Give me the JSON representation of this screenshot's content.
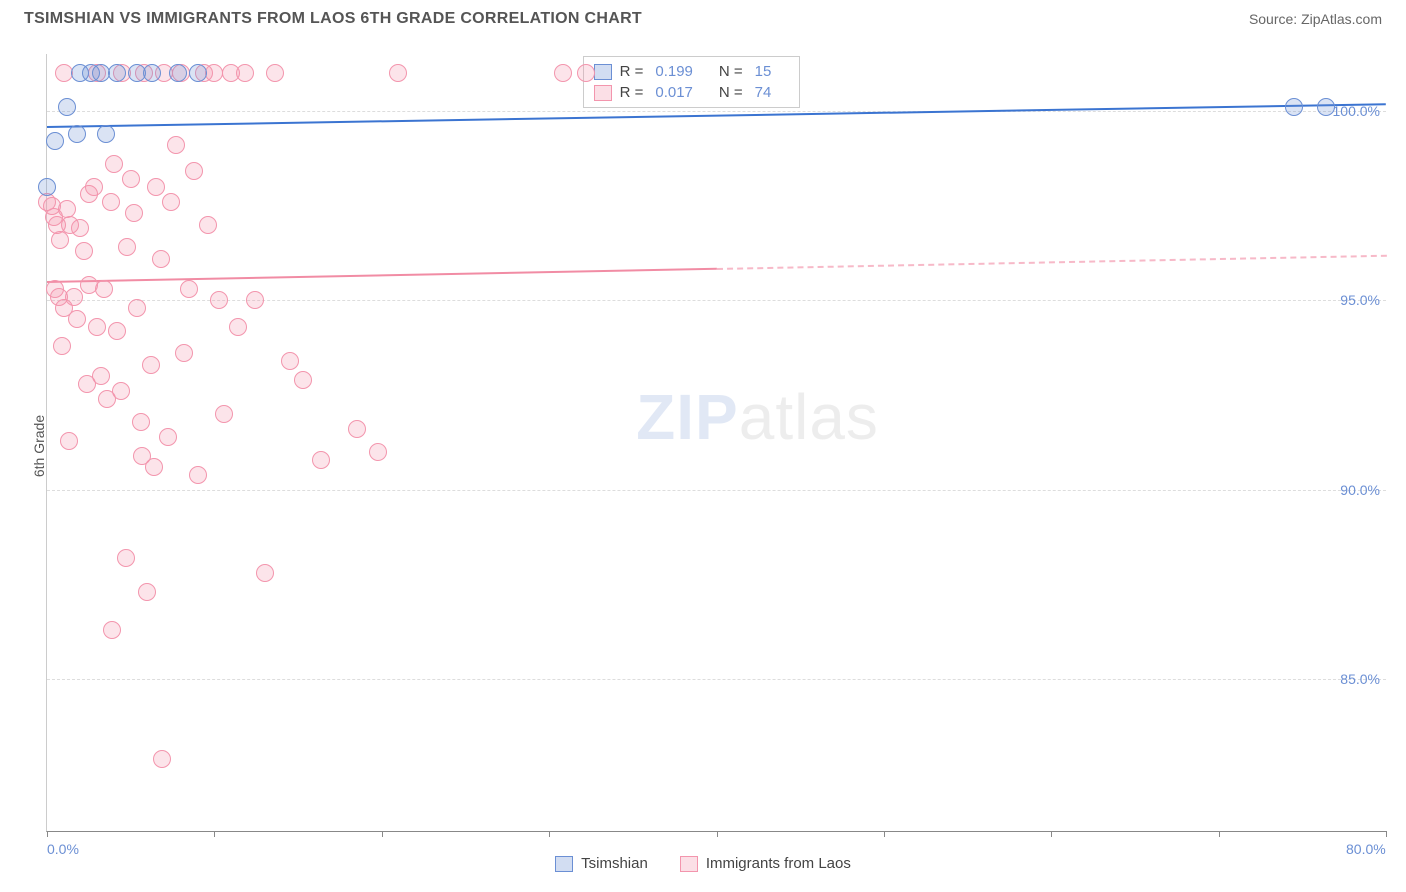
{
  "header": {
    "title": "TSIMSHIAN VS IMMIGRANTS FROM LAOS 6TH GRADE CORRELATION CHART",
    "source": "Source: ZipAtlas.com"
  },
  "chart": {
    "type": "scatter",
    "y_axis_label": "6th Grade",
    "xlim": [
      0,
      80
    ],
    "ylim": [
      81,
      101.5
    ],
    "x_ticks": [
      0,
      10,
      20,
      30,
      40,
      50,
      60,
      70,
      80
    ],
    "x_tick_labels": {
      "0": "0.0%",
      "80": "80.0%"
    },
    "y_ticks": [
      85,
      90,
      95,
      100
    ],
    "y_tick_labels": {
      "85": "85.0%",
      "90": "90.0%",
      "95": "95.0%",
      "100": "100.0%"
    },
    "grid_color": "#dddddd",
    "background_color": "#ffffff",
    "series": [
      {
        "name": "Tsimshian",
        "color_fill": "rgba(107,143,212,0.25)",
        "color_stroke": "#6b8fd4",
        "marker_radius": 9,
        "r_value": "0.199",
        "n_value": "15",
        "trend": {
          "y_start": 99.6,
          "y_end": 100.2,
          "solid_from_x": 0,
          "solid_to_x": 80
        },
        "points": [
          [
            0,
            98.0
          ],
          [
            0.5,
            99.2
          ],
          [
            1.2,
            100.1
          ],
          [
            1.8,
            99.4
          ],
          [
            2.0,
            101.0
          ],
          [
            2.6,
            101.0
          ],
          [
            3.2,
            101.0
          ],
          [
            3.5,
            99.4
          ],
          [
            4.2,
            101.0
          ],
          [
            5.4,
            101.0
          ],
          [
            6.3,
            101.0
          ],
          [
            7.8,
            101.0
          ],
          [
            9.0,
            101.0
          ],
          [
            74.5,
            100.1
          ],
          [
            76.4,
            100.1
          ]
        ]
      },
      {
        "name": "Immigrants from Laos",
        "color_fill": "rgba(243,149,173,0.25)",
        "color_stroke": "#f395ad",
        "marker_radius": 9,
        "r_value": "0.017",
        "n_value": "74",
        "trend": {
          "y_start": 95.5,
          "y_end": 96.2,
          "solid_from_x": 0,
          "solid_to_x": 40
        },
        "points": [
          [
            0,
            97.6
          ],
          [
            0.3,
            97.5
          ],
          [
            0.4,
            97.2
          ],
          [
            0.6,
            97.0
          ],
          [
            0.8,
            96.6
          ],
          [
            0.5,
            95.3
          ],
          [
            0.7,
            95.1
          ],
          [
            1.0,
            94.8
          ],
          [
            1.2,
            97.4
          ],
          [
            1.4,
            97.0
          ],
          [
            1.0,
            101.0
          ],
          [
            1.6,
            95.1
          ],
          [
            1.8,
            94.5
          ],
          [
            2.0,
            96.9
          ],
          [
            2.2,
            96.3
          ],
          [
            2.5,
            97.8
          ],
          [
            2.5,
            95.4
          ],
          [
            2.8,
            98.0
          ],
          [
            3.0,
            94.3
          ],
          [
            3.0,
            101.0
          ],
          [
            3.2,
            93.0
          ],
          [
            3.4,
            95.3
          ],
          [
            3.6,
            92.4
          ],
          [
            3.8,
            97.6
          ],
          [
            4.0,
            98.6
          ],
          [
            4.2,
            94.2
          ],
          [
            4.4,
            92.6
          ],
          [
            4.5,
            101.0
          ],
          [
            4.7,
            88.2
          ],
          [
            4.8,
            96.4
          ],
          [
            5.0,
            98.2
          ],
          [
            5.2,
            97.3
          ],
          [
            5.4,
            94.8
          ],
          [
            5.6,
            91.8
          ],
          [
            5.7,
            90.9
          ],
          [
            5.8,
            101.0
          ],
          [
            6.2,
            93.3
          ],
          [
            6.0,
            87.3
          ],
          [
            6.4,
            90.6
          ],
          [
            6.5,
            98.0
          ],
          [
            6.8,
            96.1
          ],
          [
            7.0,
            101.0
          ],
          [
            7.2,
            91.4
          ],
          [
            7.4,
            97.6
          ],
          [
            7.7,
            99.1
          ],
          [
            8.0,
            101.0
          ],
          [
            8.2,
            93.6
          ],
          [
            8.5,
            95.3
          ],
          [
            8.8,
            98.4
          ],
          [
            9.0,
            90.4
          ],
          [
            9.4,
            101.0
          ],
          [
            9.6,
            97.0
          ],
          [
            10.0,
            101.0
          ],
          [
            10.3,
            95.0
          ],
          [
            10.6,
            92.0
          ],
          [
            11.0,
            101.0
          ],
          [
            11.4,
            94.3
          ],
          [
            11.8,
            101.0
          ],
          [
            12.4,
            95.0
          ],
          [
            13.0,
            87.8
          ],
          [
            13.6,
            101.0
          ],
          [
            14.5,
            93.4
          ],
          [
            15.3,
            92.9
          ],
          [
            16.4,
            90.8
          ],
          [
            18.5,
            91.6
          ],
          [
            19.8,
            91.0
          ],
          [
            21.0,
            101.0
          ],
          [
            6.9,
            82.9
          ],
          [
            3.9,
            86.3
          ],
          [
            1.3,
            91.3
          ],
          [
            0.9,
            93.8
          ],
          [
            2.4,
            92.8
          ],
          [
            30.8,
            101.0
          ],
          [
            32.2,
            101.0
          ]
        ]
      }
    ],
    "legend": {
      "series1_label": "Tsimshian",
      "series2_label": "Immigrants from Laos",
      "r_label": "R =",
      "n_label": "N ="
    },
    "watermark": {
      "part1": "ZIP",
      "part2": "atlas"
    }
  }
}
